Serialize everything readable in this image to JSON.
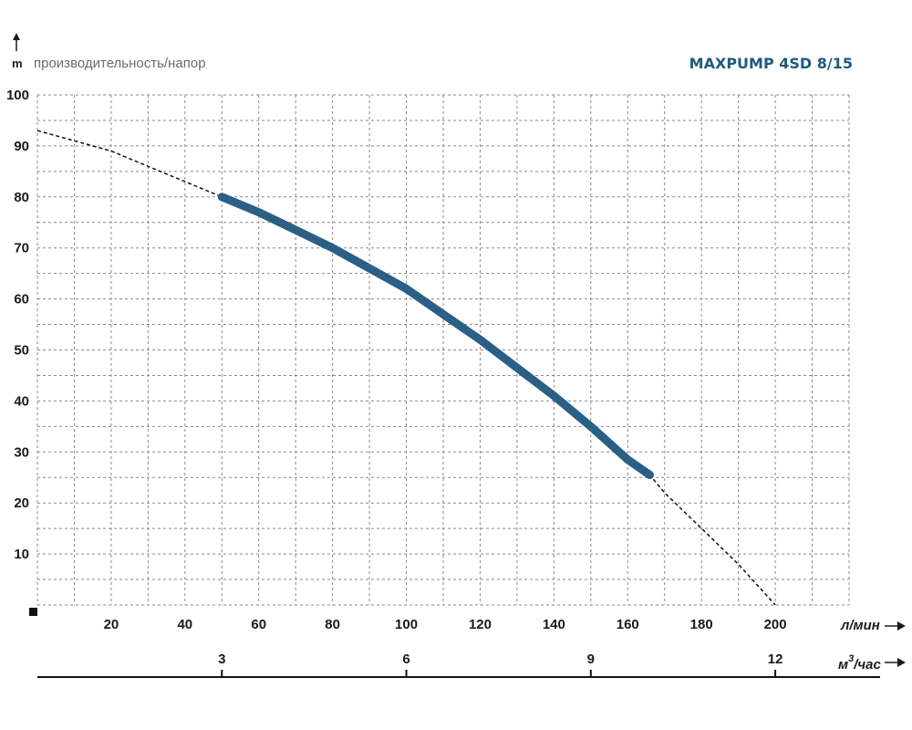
{
  "chart_data": {
    "type": "line",
    "title": "MAXPUMP 4SD 8/15",
    "ylabel": "производительность/напор",
    "yunit": "m",
    "x_unit_primary": "л/мин",
    "x_unit_secondary_main": "м",
    "x_unit_secondary_sup": "3",
    "x_unit_secondary_tail": "/час",
    "xlim": [
      0,
      220
    ],
    "ylim": [
      0,
      100
    ],
    "x_ticks": [
      20,
      40,
      60,
      80,
      100,
      120,
      140,
      160,
      180,
      200
    ],
    "y_ticks": [
      10,
      20,
      30,
      40,
      50,
      60,
      70,
      80,
      90,
      100
    ],
    "secondary_ticks": [
      {
        "label": "3",
        "value": 50
      },
      {
        "label": "6",
        "value": 100
      },
      {
        "label": "9",
        "value": 150
      },
      {
        "label": "12",
        "value": 200
      }
    ],
    "grid": true,
    "series": [
      {
        "style": "dashed",
        "color": "#111111",
        "x": [
          0,
          10,
          20,
          30,
          40,
          50,
          60,
          70,
          80,
          90,
          100,
          110,
          120,
          130,
          140,
          150,
          160,
          166,
          170,
          180,
          190,
          200
        ],
        "y": [
          93,
          91,
          89,
          86,
          83,
          80,
          77,
          73.5,
          70,
          66,
          62,
          57,
          52,
          46.5,
          41,
          35,
          28.5,
          25.5,
          22,
          15,
          8,
          0
        ]
      },
      {
        "style": "thick",
        "color": "#2a5f86",
        "x": [
          50,
          60,
          70,
          80,
          90,
          100,
          110,
          120,
          130,
          140,
          150,
          160,
          166
        ],
        "y": [
          80,
          77,
          73.5,
          70,
          66,
          62,
          57,
          52,
          46.5,
          41,
          35,
          28.5,
          25.5
        ]
      }
    ]
  }
}
